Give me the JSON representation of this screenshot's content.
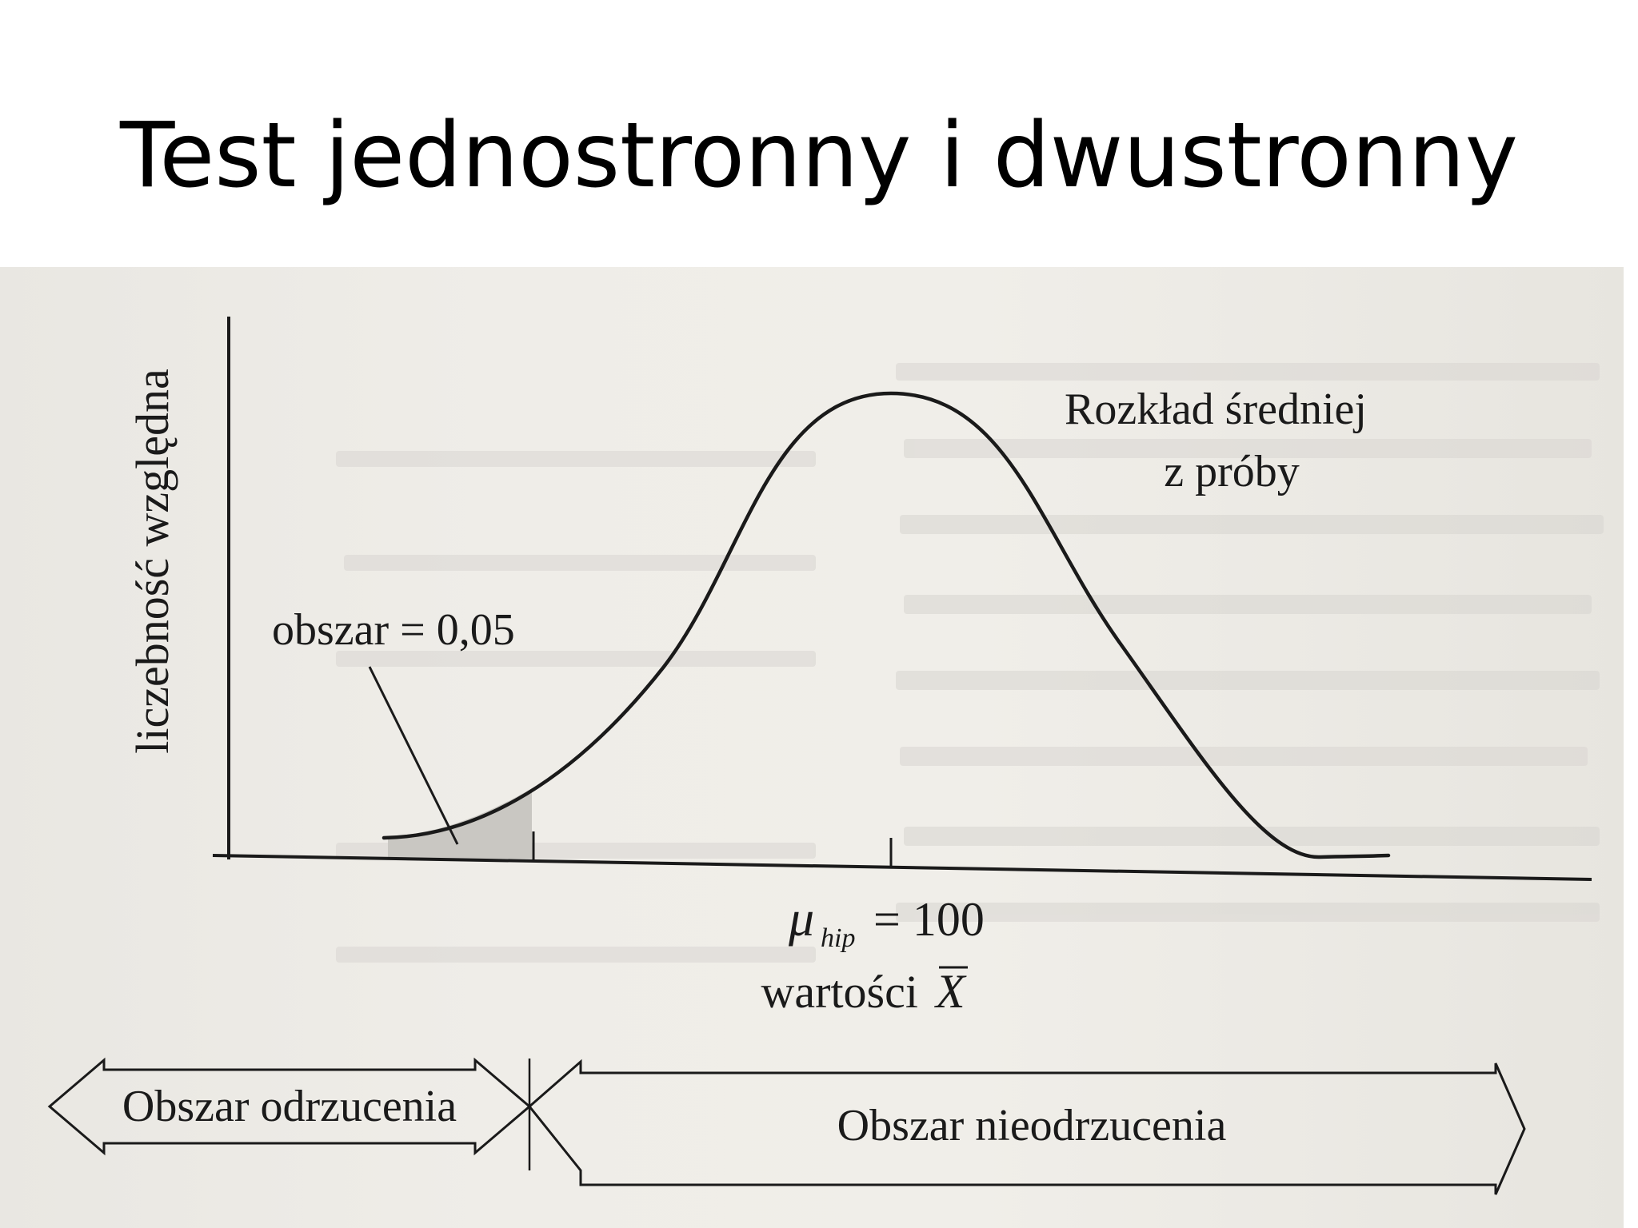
{
  "title": "Test jednostronny i dwustronny",
  "figure": {
    "y_axis_label": "liczebność względna",
    "curve_label_line1": "Rozkład średniej",
    "curve_label_line2": "z próby",
    "area_label": "obszar = 0,05",
    "mean_symbol": "μ",
    "mean_subscript": "hip",
    "mean_value": "= 100",
    "x_axis_label": "wartości",
    "x_axis_symbol": "X",
    "rejection_region_label": "Obszar odrzucenia",
    "non_rejection_region_label": "Obszar nieodrzucenia",
    "colors": {
      "paper": "#eeece7",
      "ink": "#1a1a1a",
      "shaded_area": "#c9c7c2"
    }
  }
}
